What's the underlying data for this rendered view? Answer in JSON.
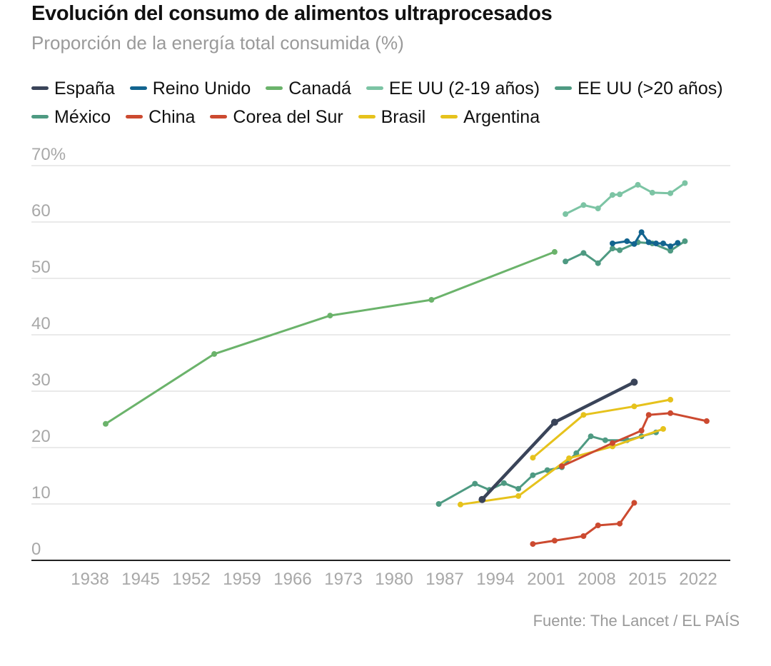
{
  "title": "Evolución del consumo de alimentos ultraprocesados",
  "subtitle": "Proporción de la energía total consumida (%)",
  "source": "Fuente: The Lancet / EL PAÍS",
  "chart_data": {
    "type": "line",
    "title": "Evolución del consumo de alimentos ultraprocesados",
    "subtitle": "Proporción de la energía total consumida (%)",
    "xlabel": "",
    "ylabel": "",
    "xlim": [
      1932,
      2025
    ],
    "ylim": [
      0,
      70
    ],
    "grid": true,
    "legend_position": "top",
    "x_ticks": [
      1938,
      1945,
      1952,
      1959,
      1966,
      1973,
      1980,
      1987,
      1994,
      2001,
      2008,
      2015,
      2022
    ],
    "x_tick_labels": [
      "1938",
      "1945",
      "1952",
      "1959",
      "1966",
      "1973",
      "1980",
      "1987",
      "1994",
      "2001",
      "2008",
      "2015",
      "2022"
    ],
    "y_ticks": [
      0,
      10,
      20,
      30,
      40,
      50,
      60,
      70
    ],
    "y_tick_labels": [
      "0",
      "10",
      "20",
      "30",
      "40",
      "50",
      "60",
      "70%"
    ],
    "series": [
      {
        "name": "Canadá",
        "color": "#6bb36b",
        "width": 3,
        "points": [
          [
            1938,
            24.2
          ],
          [
            1953,
            36.6
          ],
          [
            1969,
            43.4
          ],
          [
            1983,
            46.2
          ],
          [
            2000,
            54.7
          ]
        ]
      },
      {
        "name": "EE UU (2-19 años)",
        "color": "#7cc4a4",
        "width": 3,
        "points": [
          [
            2001.5,
            61.4
          ],
          [
            2004,
            63.0
          ],
          [
            2006,
            62.4
          ],
          [
            2008,
            64.8
          ],
          [
            2009,
            64.9
          ],
          [
            2011.5,
            66.6
          ],
          [
            2013.5,
            65.2
          ],
          [
            2016,
            65.1
          ],
          [
            2018,
            66.9
          ]
        ]
      },
      {
        "name": "EE UU (>20 años)",
        "color": "#4e9a82",
        "width": 3,
        "points": [
          [
            2001.5,
            53.0
          ],
          [
            2004,
            54.5
          ],
          [
            2006,
            52.7
          ],
          [
            2008,
            55.3
          ],
          [
            2009,
            55.0
          ],
          [
            2011.5,
            56.4
          ],
          [
            2013.5,
            56.2
          ],
          [
            2016,
            54.9
          ],
          [
            2018,
            56.6
          ]
        ]
      },
      {
        "name": "Reino Unido",
        "color": "#12648f",
        "width": 3,
        "points": [
          [
            2008,
            56.2
          ],
          [
            2010,
            56.6
          ],
          [
            2011,
            56.1
          ],
          [
            2012,
            58.2
          ],
          [
            2013,
            56.4
          ],
          [
            2014,
            56.2
          ],
          [
            2015,
            56.2
          ],
          [
            2016,
            55.7
          ],
          [
            2017,
            56.3
          ]
        ]
      },
      {
        "name": "México",
        "color": "#4e9a82",
        "width": 3,
        "points": [
          [
            1984,
            10.0
          ],
          [
            1989,
            13.6
          ],
          [
            1991,
            12.5
          ],
          [
            1993,
            13.7
          ],
          [
            1995,
            12.7
          ],
          [
            1997,
            15.1
          ],
          [
            1999,
            16.0
          ],
          [
            2001,
            16.5
          ],
          [
            2003,
            19.0
          ],
          [
            2005,
            22.0
          ],
          [
            2007,
            21.3
          ],
          [
            2010,
            21.3
          ],
          [
            2012,
            22.0
          ],
          [
            2014,
            22.7
          ]
        ]
      },
      {
        "name": "Brasil",
        "color": "#e6c21c",
        "width": 3,
        "points": [
          [
            1987,
            9.9
          ],
          [
            1995,
            11.4
          ],
          [
            2002,
            18.1
          ],
          [
            2008,
            20.2
          ],
          [
            2015,
            23.3
          ]
        ]
      },
      {
        "name": "Argentina",
        "color": "#e6c21c",
        "width": 3,
        "points": [
          [
            1997,
            18.2
          ],
          [
            2004,
            25.8
          ],
          [
            2011,
            27.3
          ],
          [
            2016,
            28.5
          ]
        ]
      },
      {
        "name": "Corea del Sur",
        "color": "#cc4a30",
        "width": 3,
        "points": [
          [
            2001,
            16.7
          ],
          [
            2008,
            20.8
          ],
          [
            2012,
            23.0
          ],
          [
            2013,
            25.8
          ],
          [
            2016,
            26.1
          ],
          [
            2021,
            24.7
          ]
        ]
      },
      {
        "name": "China",
        "color": "#cc4a30",
        "width": 3,
        "points": [
          [
            1997,
            2.9
          ],
          [
            2000,
            3.5
          ],
          [
            2004,
            4.3
          ],
          [
            2006,
            6.2
          ],
          [
            2009,
            6.5
          ],
          [
            2011,
            10.2
          ]
        ]
      },
      {
        "name": "España",
        "color": "#3a4459",
        "width": 4.5,
        "points": [
          [
            1990,
            10.8
          ],
          [
            2000,
            24.5
          ],
          [
            2011,
            31.6
          ]
        ]
      }
    ],
    "legend": [
      {
        "name": "España",
        "color": "#3a4459"
      },
      {
        "name": "Reino Unido",
        "color": "#12648f"
      },
      {
        "name": "Canadá",
        "color": "#6bb36b"
      },
      {
        "name": "EE UU (2-19 años)",
        "color": "#7cc4a4"
      },
      {
        "name": "EE UU (>20 años)",
        "color": "#4e9a82"
      },
      {
        "name": "México",
        "color": "#4e9a82"
      },
      {
        "name": "China",
        "color": "#cc4a30"
      },
      {
        "name": "Corea del Sur",
        "color": "#cc4a30"
      },
      {
        "name": "Brasil",
        "color": "#e6c21c"
      },
      {
        "name": "Argentina",
        "color": "#e6c21c"
      }
    ]
  }
}
